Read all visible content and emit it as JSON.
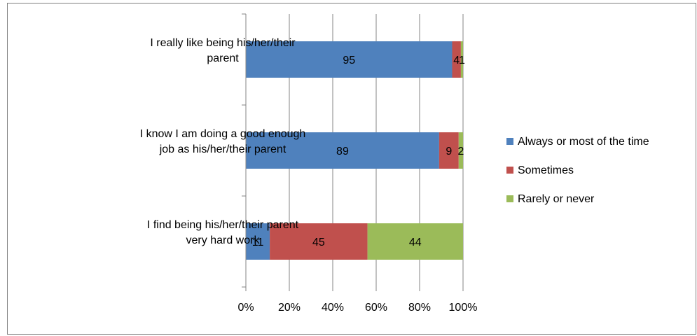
{
  "chart_data": {
    "type": "bar",
    "orientation": "horizontal",
    "stacked": "percent",
    "title": "",
    "xlabel": "",
    "ylabel": "",
    "xlim": [
      0,
      100
    ],
    "grid": true,
    "legend_position": "right",
    "x_ticks": [
      "0%",
      "20%",
      "40%",
      "60%",
      "80%",
      "100%"
    ],
    "categories": [
      [
        "I really like being his/her/their",
        "parent"
      ],
      [
        "I know I am doing a good enough",
        "job as his/her/their parent"
      ],
      [
        "I find being his/her/their parent",
        "very hard work"
      ]
    ],
    "series": [
      {
        "name": "Always or most of the time",
        "color": "#4F81BD",
        "values": [
          95,
          89,
          11
        ]
      },
      {
        "name": "Sometimes",
        "color": "#C0504D",
        "values": [
          4,
          9,
          45
        ]
      },
      {
        "name": "Rarely or never",
        "color": "#9BBB59",
        "values": [
          1,
          2,
          44
        ]
      }
    ]
  }
}
